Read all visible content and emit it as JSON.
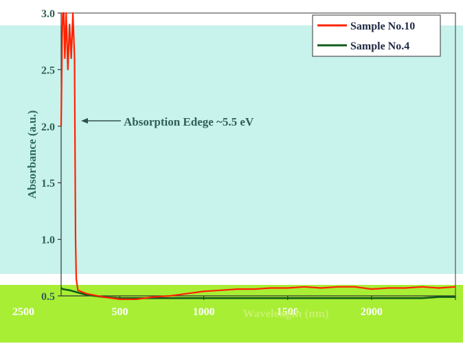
{
  "chart_data": {
    "type": "line",
    "xlabel": "Wavelength (nm)",
    "ylabel": "Absorbance (a.u.)",
    "xlim": [
      150,
      2500
    ],
    "ylim": [
      0.5,
      3.0
    ],
    "x_ticks": [
      {
        "value": 500,
        "label": "500"
      },
      {
        "value": 1000,
        "label": "1000"
      },
      {
        "value": 1500,
        "label": "1500"
      },
      {
        "value": 2000,
        "label": "2000"
      },
      {
        "value": 2500,
        "label": "2500"
      }
    ],
    "y_ticks": [
      {
        "value": 0.5,
        "label": "0.5"
      },
      {
        "value": 1.0,
        "label": "1.0"
      },
      {
        "value": 1.5,
        "label": "1.5"
      },
      {
        "value": 2.0,
        "label": "2.0"
      },
      {
        "value": 2.5,
        "label": "2.5"
      },
      {
        "value": 3.0,
        "label": "3.0"
      }
    ],
    "annotation": {
      "text": "Absorption Edege ~5.5 eV",
      "x": 235,
      "y": 2.0
    },
    "legend": "top-right",
    "grid": false,
    "series": [
      {
        "name": "Sample No.10",
        "color": "#ff2200",
        "x": [
          150,
          156,
          160,
          166,
          172,
          180,
          190,
          200,
          210,
          220,
          230,
          232,
          236,
          240,
          250,
          300,
          400,
          500,
          600,
          700,
          800,
          900,
          1000,
          1100,
          1200,
          1300,
          1400,
          1500,
          1600,
          1700,
          1800,
          1900,
          2000,
          2100,
          2200,
          2300,
          2400,
          2500
        ],
        "y": [
          2.0,
          2.8,
          3.0,
          3.0,
          2.6,
          3.0,
          2.5,
          2.9,
          2.6,
          3.0,
          2.6,
          2.05,
          1.0,
          0.65,
          0.55,
          0.52,
          0.49,
          0.47,
          0.47,
          0.49,
          0.5,
          0.52,
          0.54,
          0.55,
          0.56,
          0.56,
          0.57,
          0.57,
          0.58,
          0.57,
          0.58,
          0.58,
          0.56,
          0.57,
          0.57,
          0.58,
          0.57,
          0.58
        ]
      },
      {
        "name": "Sample No.4",
        "color": "#0e5c1a",
        "x": [
          150,
          160,
          200,
          250,
          300,
          400,
          500,
          600,
          700,
          800,
          900,
          1000,
          1100,
          1200,
          1300,
          1400,
          1500,
          1600,
          1700,
          1800,
          1900,
          2000,
          2100,
          2200,
          2300,
          2400,
          2500
        ],
        "y": [
          0.57,
          0.56,
          0.55,
          0.53,
          0.51,
          0.49,
          0.48,
          0.48,
          0.48,
          0.48,
          0.48,
          0.48,
          0.48,
          0.48,
          0.48,
          0.48,
          0.48,
          0.48,
          0.48,
          0.48,
          0.48,
          0.48,
          0.48,
          0.48,
          0.48,
          0.49,
          0.49
        ]
      }
    ]
  },
  "overlay": {
    "highlight_color": "#c8f2ec",
    "bottom_band_color": "#a8ee35"
  }
}
